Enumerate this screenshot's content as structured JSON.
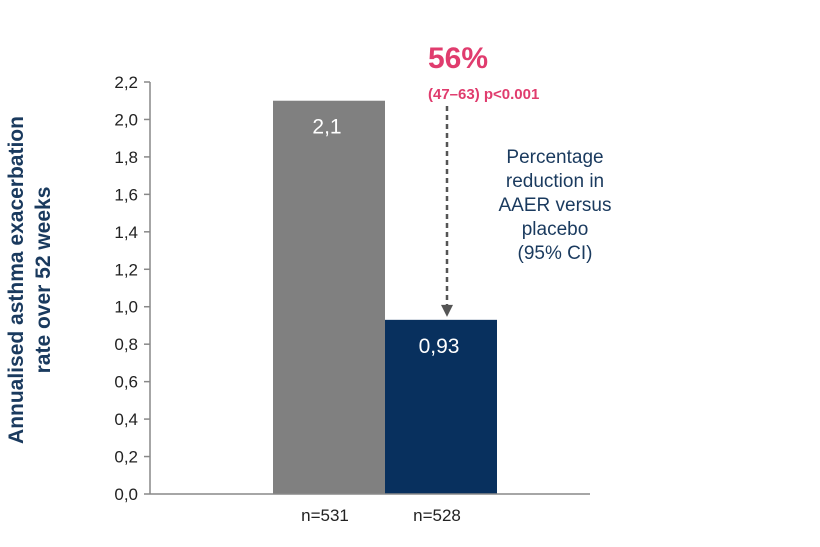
{
  "chart_data": {
    "type": "bar",
    "categories": [
      "n=531",
      "n=528"
    ],
    "values": [
      2.1,
      0.93
    ],
    "data_labels": [
      "2,1",
      "0,93"
    ],
    "colors": [
      "#808080",
      "#08305e"
    ],
    "ylabel_lines": [
      "Annualised asthma exacerbation",
      "rate over 52 weeks"
    ],
    "ylim": [
      0,
      2.2
    ],
    "yticks": [
      0,
      0.2,
      0.4,
      0.6,
      0.8,
      1.0,
      1.2,
      1.4,
      1.6,
      1.8,
      2.0,
      2.2
    ],
    "ytick_labels": [
      "0,0",
      "0,2",
      "0,4",
      "0,6",
      "0,8",
      "1,0",
      "1,2",
      "1,4",
      "1,6",
      "1,8",
      "2,0",
      "2,2"
    ],
    "grid": false,
    "annotation": {
      "percent": "56%",
      "ci": "(47–63) p<0.001",
      "note_lines": [
        "Percentage",
        "reduction in",
        "AAER versus",
        "placebo",
        "(95% CI)"
      ],
      "color": "#e03c6e",
      "note_color": "#1a3a5e"
    }
  }
}
